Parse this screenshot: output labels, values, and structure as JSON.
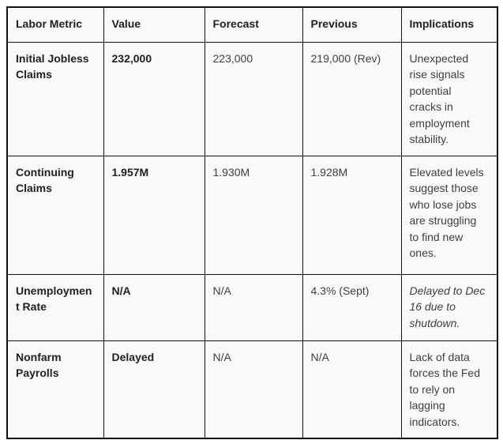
{
  "colors": {
    "page_background": "#ffffff",
    "cell_background": "#f8f9fa",
    "border": "#111111",
    "text_bold": "#202124",
    "text_regular": "#3c4043"
  },
  "chart_data": {
    "type": "table",
    "columns": [
      "Labor Metric",
      "Value",
      "Forecast",
      "Previous",
      "Implications"
    ],
    "rows": [
      {
        "metric": "Initial Jobless Claims",
        "value": "232,000",
        "forecast": "223,000",
        "previous": "219,000 (Rev)",
        "implications": "Unexpected rise signals potential cracks in employment stability."
      },
      {
        "metric": "Continuing Claims",
        "value": "1.957M",
        "forecast": "1.930M",
        "previous": "1.928M",
        "implications": "Elevated levels suggest those who lose jobs are struggling to find new ones."
      },
      {
        "metric": "Unemployment Rate",
        "value": "N/A",
        "forecast": "N/A",
        "previous": "4.3% (Sept)",
        "implications": "Delayed to Dec 16 due to shutdown."
      },
      {
        "metric": "Nonfarm Payrolls",
        "value": "Delayed",
        "forecast": "N/A",
        "previous": "N/A",
        "implications": "Lack of data forces the Fed to rely on lagging indicators."
      }
    ]
  }
}
